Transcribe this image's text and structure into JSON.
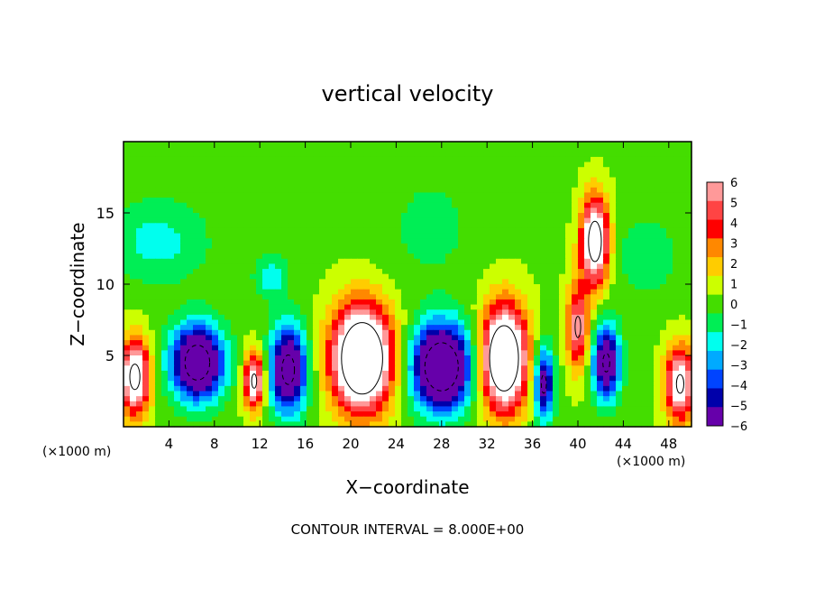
{
  "chart_data": {
    "type": "heatmap",
    "title": "vertical velocity",
    "xlabel": "X−coordinate",
    "ylabel": "Z−coordinate",
    "x_unit_left": "(×1000 m)",
    "x_unit_right": "(×1000 m)",
    "footer": "CONTOUR INTERVAL = 8.000E+00",
    "xlim": [
      0,
      50
    ],
    "ylim": [
      0,
      20
    ],
    "x_ticks": [
      4,
      8,
      12,
      16,
      20,
      24,
      28,
      32,
      36,
      40,
      44,
      48
    ],
    "x_tick_labels": [
      "4",
      "8",
      "12",
      "16",
      "20",
      "24",
      "28",
      "32",
      "36",
      "40",
      "44",
      "48"
    ],
    "y_ticks": [
      5,
      10,
      15
    ],
    "y_tick_labels": [
      "5",
      "10",
      "15"
    ],
    "colorbar": {
      "levels": [
        6,
        5,
        4,
        3,
        2,
        1,
        0,
        -1,
        -2,
        -3,
        -4,
        -5,
        -6
      ],
      "labels": [
        "6",
        "5",
        "4",
        "3",
        "2",
        "1",
        "0",
        "−1",
        "−2",
        "−3",
        "−4",
        "−5",
        "−6"
      ],
      "colors": [
        "#ff9999",
        "#ff4444",
        "#ff0000",
        "#ff8800",
        "#ffcc00",
        "#ccff00",
        "#44dd00",
        "#00ee55",
        "#00ffee",
        "#00aaff",
        "#0044ff",
        "#0000aa",
        "#6600aa"
      ]
    },
    "background_value": 0.3,
    "cells": [
      {
        "name": "updraft-x1",
        "x": 1,
        "z": 3.5,
        "sx": 1.3,
        "sz": 2.6,
        "amp": 9
      },
      {
        "name": "downdraft-x6",
        "x": 6.5,
        "z": 4.5,
        "sx": 2.3,
        "sz": 2.6,
        "amp": -10
      },
      {
        "name": "updraft-x11.5",
        "x": 11.5,
        "z": 3.2,
        "sx": 0.9,
        "sz": 2.0,
        "amp": 8
      },
      {
        "name": "downdraft-x14.5",
        "x": 14.5,
        "z": 4.0,
        "sx": 1.6,
        "sz": 3.0,
        "amp": -9
      },
      {
        "name": "updraft-x21",
        "x": 21,
        "z": 4.8,
        "sx": 2.6,
        "sz": 3.6,
        "amp": 13
      },
      {
        "name": "downdraft-x28",
        "x": 28,
        "z": 4.2,
        "sx": 2.6,
        "sz": 3.0,
        "amp": -11
      },
      {
        "name": "updraft-x33.5",
        "x": 33.5,
        "z": 4.8,
        "sx": 2.0,
        "sz": 3.6,
        "amp": 12
      },
      {
        "name": "downdraft-x37",
        "x": 37,
        "z": 3.0,
        "sx": 0.9,
        "sz": 2.6,
        "amp": -7
      },
      {
        "name": "updraft-x41.5",
        "x": 41.5,
        "z": 13.0,
        "sx": 1.2,
        "sz": 3.0,
        "amp": 10
      },
      {
        "name": "updraft-x40",
        "x": 40,
        "z": 7.0,
        "sx": 1.0,
        "sz": 3.0,
        "amp": 6
      },
      {
        "name": "downdraft-x42.5",
        "x": 42.5,
        "z": 4.5,
        "sx": 1.2,
        "sz": 2.6,
        "amp": -8
      },
      {
        "name": "updraft-x49",
        "x": 49,
        "z": 3.0,
        "sx": 1.3,
        "sz": 2.6,
        "amp": 8
      },
      {
        "name": "downdraft-upper-x3",
        "x": 3,
        "z": 13.0,
        "sx": 4.5,
        "sz": 3.0,
        "amp": -2.2
      },
      {
        "name": "downdraft-upper-x13",
        "x": 13,
        "z": 10.5,
        "sx": 1.5,
        "sz": 1.5,
        "amp": -2.5
      },
      {
        "name": "downdraft-upper-x27",
        "x": 27,
        "z": 14.0,
        "sx": 4.0,
        "sz": 4.0,
        "amp": -1.2
      },
      {
        "name": "downdraft-upper-x46",
        "x": 46,
        "z": 12.0,
        "sx": 3.0,
        "sz": 3.0,
        "amp": -1.5
      }
    ]
  }
}
